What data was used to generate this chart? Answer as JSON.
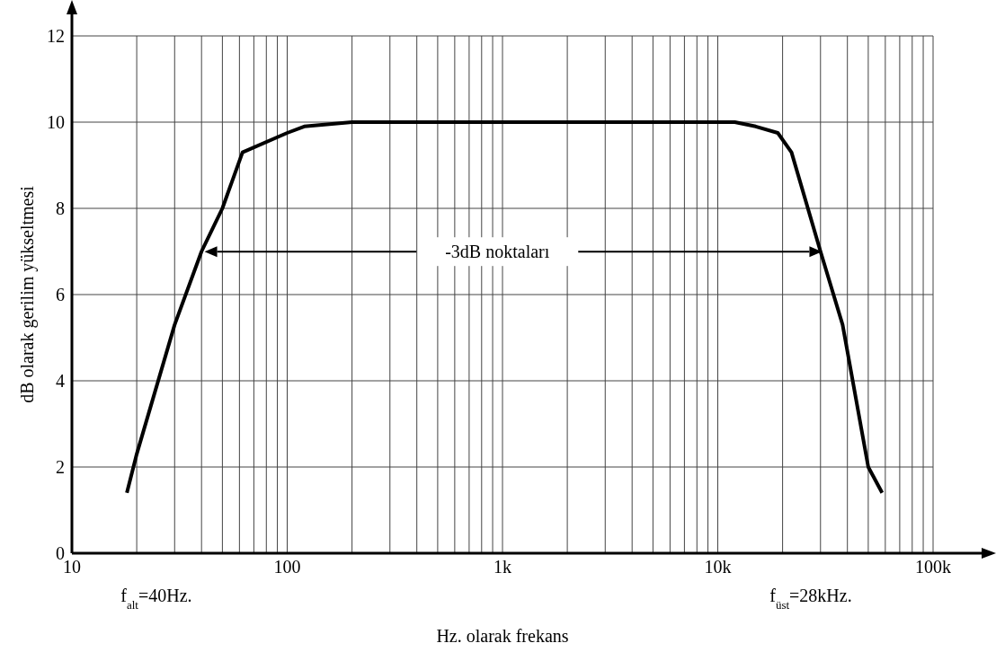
{
  "chart_data": {
    "type": "line",
    "xlabel": "Hz. olarak frekans",
    "ylabel": "dB olarak gerilim yükseltmesi",
    "log": "x",
    "grid": true,
    "marker": "none",
    "line_style": "solid",
    "xlim": [
      10,
      100000
    ],
    "ylim": [
      0,
      12
    ],
    "yticks": [
      0,
      2,
      4,
      6,
      8,
      10,
      12
    ],
    "xticks": [
      {
        "value": 10,
        "label": "10"
      },
      {
        "value": 20,
        "label": null
      },
      {
        "value": 30,
        "label": null
      },
      {
        "value": 40,
        "label": null
      },
      {
        "value": 50,
        "label": null
      },
      {
        "value": 60,
        "label": null
      },
      {
        "value": 70,
        "label": null
      },
      {
        "value": 80,
        "label": null
      },
      {
        "value": 90,
        "label": null
      },
      {
        "value": 100,
        "label": "100"
      },
      {
        "value": 200,
        "label": null
      },
      {
        "value": 300,
        "label": null
      },
      {
        "value": 400,
        "label": null
      },
      {
        "value": 500,
        "label": null
      },
      {
        "value": 600,
        "label": null
      },
      {
        "value": 700,
        "label": null
      },
      {
        "value": 800,
        "label": null
      },
      {
        "value": 900,
        "label": null
      },
      {
        "value": 1000,
        "label": "1k"
      },
      {
        "value": 2000,
        "label": null
      },
      {
        "value": 3000,
        "label": null
      },
      {
        "value": 4000,
        "label": null
      },
      {
        "value": 5000,
        "label": null
      },
      {
        "value": 6000,
        "label": null
      },
      {
        "value": 7000,
        "label": null
      },
      {
        "value": 8000,
        "label": null
      },
      {
        "value": 9000,
        "label": null
      },
      {
        "value": 10000,
        "label": "10k"
      },
      {
        "value": 20000,
        "label": null
      },
      {
        "value": 30000,
        "label": null
      },
      {
        "value": 40000,
        "label": null
      },
      {
        "value": 50000,
        "label": null
      },
      {
        "value": 60000,
        "label": null
      },
      {
        "value": 70000,
        "label": null
      },
      {
        "value": 80000,
        "label": null
      },
      {
        "value": 90000,
        "label": null
      },
      {
        "value": 100000,
        "label": "100k"
      }
    ],
    "series": [
      {
        "color": "#000000",
        "x": [
          18,
          20,
          30,
          40,
          50,
          62,
          100,
          120,
          200,
          1000,
          12000,
          15000,
          19000,
          22000,
          30000,
          38000,
          50000,
          58000
        ],
        "values": [
          1.4,
          2.3,
          5.3,
          7,
          8,
          9.3,
          9.75,
          9.9,
          10,
          10,
          10,
          9.9,
          9.75,
          9.3,
          7,
          5.3,
          2,
          1.4
        ]
      }
    ],
    "annotations": [
      "f$_{alt}$=40Hz.",
      "f$_{üst}$=28kHz.",
      "-3dB noktaları"
    ]
  }
}
